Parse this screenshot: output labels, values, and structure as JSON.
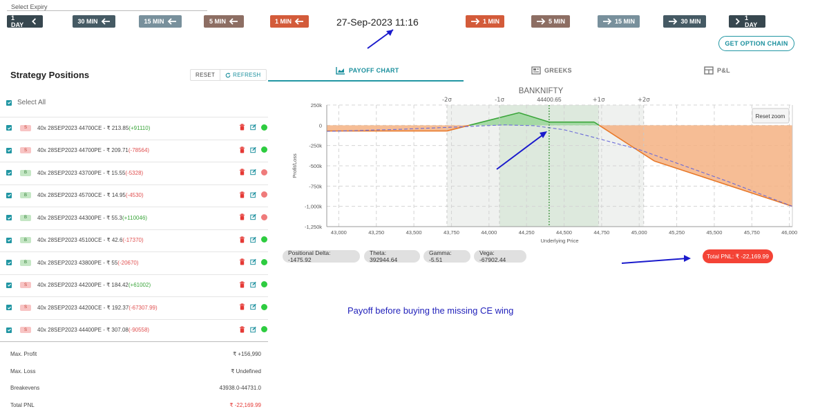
{
  "expiry": {
    "label": "Select Expiry"
  },
  "nav": {
    "back": [
      "1 DAY",
      "30 MIN",
      "15 MIN",
      "5 MIN",
      "1 MIN"
    ],
    "forward": [
      "1 MIN",
      "5 MIN",
      "15 MIN",
      "30 MIN",
      "1 DAY"
    ],
    "colors": {
      "day": "#37474f",
      "m30": "#455a64",
      "m15": "#78909c",
      "m5": "#8d6e63",
      "m1": "#d35b3a"
    }
  },
  "datetime": "27-Sep-2023 11:16",
  "option_chain_label": "GET OPTION CHAIN",
  "strategy": {
    "title": "Strategy Positions",
    "reset_label": "RESET",
    "refresh_label": "REFRESH",
    "select_all_label": "Select All",
    "positions": [
      {
        "side": "S",
        "desc": "40x  28SEP2023  44700CE  - ₹ 213.85",
        "pnl": "(+91110)",
        "pnl_color": "g",
        "status": "green"
      },
      {
        "side": "S",
        "desc": "40x  28SEP2023  44700PE  - ₹ 209.71",
        "pnl": "(-78564)",
        "pnl_color": "r",
        "status": "green"
      },
      {
        "side": "B",
        "desc": "40x  28SEP2023  43700PE  - ₹ 15.55",
        "pnl": "(-5328)",
        "pnl_color": "r",
        "status": "red"
      },
      {
        "side": "B",
        "desc": "40x  28SEP2023  45700CE  - ₹ 14.95",
        "pnl": "(-4530)",
        "pnl_color": "r",
        "status": "red"
      },
      {
        "side": "B",
        "desc": "40x  28SEP2023  44300PE  - ₹ 55.3",
        "pnl": "(+110046)",
        "pnl_color": "g",
        "status": "red"
      },
      {
        "side": "B",
        "desc": "40x  28SEP2023  45100CE  - ₹ 42.6",
        "pnl": "(-17370)",
        "pnl_color": "r",
        "status": "green"
      },
      {
        "side": "B",
        "desc": "40x  28SEP2023  43800PE  - ₹ 55",
        "pnl": "(-20670)",
        "pnl_color": "r",
        "status": "green"
      },
      {
        "side": "S",
        "desc": "40x  28SEP2023  44200PE  - ₹ 184.42",
        "pnl": "(+61002)",
        "pnl_color": "g",
        "status": "green"
      },
      {
        "side": "S",
        "desc": "40x  28SEP2023  44200CE  - ₹ 192.37",
        "pnl": "(-67307.99)",
        "pnl_color": "r",
        "status": "green"
      },
      {
        "side": "S",
        "desc": "40x  28SEP2023  44400PE  - ₹ 307.08",
        "pnl": "(-90558)",
        "pnl_color": "r",
        "status": "green"
      }
    ],
    "summary": [
      {
        "label": "Max. Profit",
        "value": "₹ +156,990",
        "red": false
      },
      {
        "label": "Max. Loss",
        "value": "₹ Undefined",
        "red": false
      },
      {
        "label": "Breakevens",
        "value": "43938.0-44731.0",
        "red": false
      },
      {
        "label": "Total PNL",
        "value": "₹ -22,169.99",
        "red": true
      }
    ]
  },
  "tabs": [
    {
      "label": "PAYOFF CHART",
      "active": true,
      "icon": "area-chart-icon"
    },
    {
      "label": "GREEKS",
      "active": false,
      "icon": "newspaper-icon"
    },
    {
      "label": "P&L",
      "active": false,
      "icon": "table-icon"
    }
  ],
  "greeks": {
    "delta": "Positional Delta: -1475.92",
    "theta": "Theta: 392944.64",
    "gamma": "Gamma: -5.51",
    "vega": "Vega: -67902.44"
  },
  "total_pnl_chip": "Total PNL: ₹ -22,169.99",
  "annotation": "Payoff before buying the missing CE wing",
  "colors": {
    "accent": "#2196a3",
    "profit": "#3aa53a",
    "loss": "#f4b183",
    "pnl_chip": "#f44336",
    "annotation_arrow": "#1a1acc"
  },
  "chart_data": {
    "type": "area",
    "title": "BANKNIFTY",
    "xlabel": "Underlying Price",
    "ylabel": "Profit/Loss",
    "xlim": [
      42920,
      46020
    ],
    "ylim": [
      -1250000,
      250000
    ],
    "x_ticks": [
      43000,
      43250,
      43500,
      43750,
      44000,
      44250,
      44500,
      44750,
      45000,
      45250,
      45500,
      45750,
      46000
    ],
    "x_tick_labels": [
      "43,000",
      "43,250",
      "43,500",
      "43,750",
      "44,000",
      "44,250",
      "44,500",
      "44,750",
      "45,000",
      "45,250",
      "45,500",
      "45,750",
      "46,000"
    ],
    "y_ticks": [
      250000,
      0,
      -250000,
      -500000,
      -750000,
      -1000000,
      -1250000
    ],
    "y_tick_labels": [
      "250k",
      "0",
      "-250k",
      "-500k",
      "-750k",
      "-1,000k",
      "-1,250k"
    ],
    "spot": {
      "value": 44400.65,
      "label": "44400.65"
    },
    "sigma_lines": [
      {
        "value": 43720,
        "label": "-2σ"
      },
      {
        "value": 44070,
        "label": "-1σ"
      },
      {
        "value": 44730,
        "label": "+1σ"
      },
      {
        "value": 45030,
        "label": "+2σ"
      }
    ],
    "sigma_bands": [
      {
        "from": 43720,
        "to": 45030
      },
      {
        "from": 44070,
        "to": 44730
      }
    ],
    "series": [
      {
        "role": "expiry",
        "x": [
          42920,
          43720,
          44200,
          44400,
          44700,
          45100,
          46020
        ],
        "y": [
          -70000,
          -70000,
          155000,
          40000,
          40000,
          -440000,
          -1000000
        ]
      },
      {
        "role": "today",
        "x": [
          42920,
          43400,
          43800,
          44100,
          44300,
          44500,
          44700,
          45000,
          45300,
          45600,
          46020
        ],
        "y": [
          -75000,
          -50000,
          -20000,
          5000,
          -5000,
          -55000,
          -150000,
          -300000,
          -500000,
          -700000,
          -1000000
        ]
      }
    ],
    "reset_zoom_label": "Reset zoom",
    "grid": true
  }
}
